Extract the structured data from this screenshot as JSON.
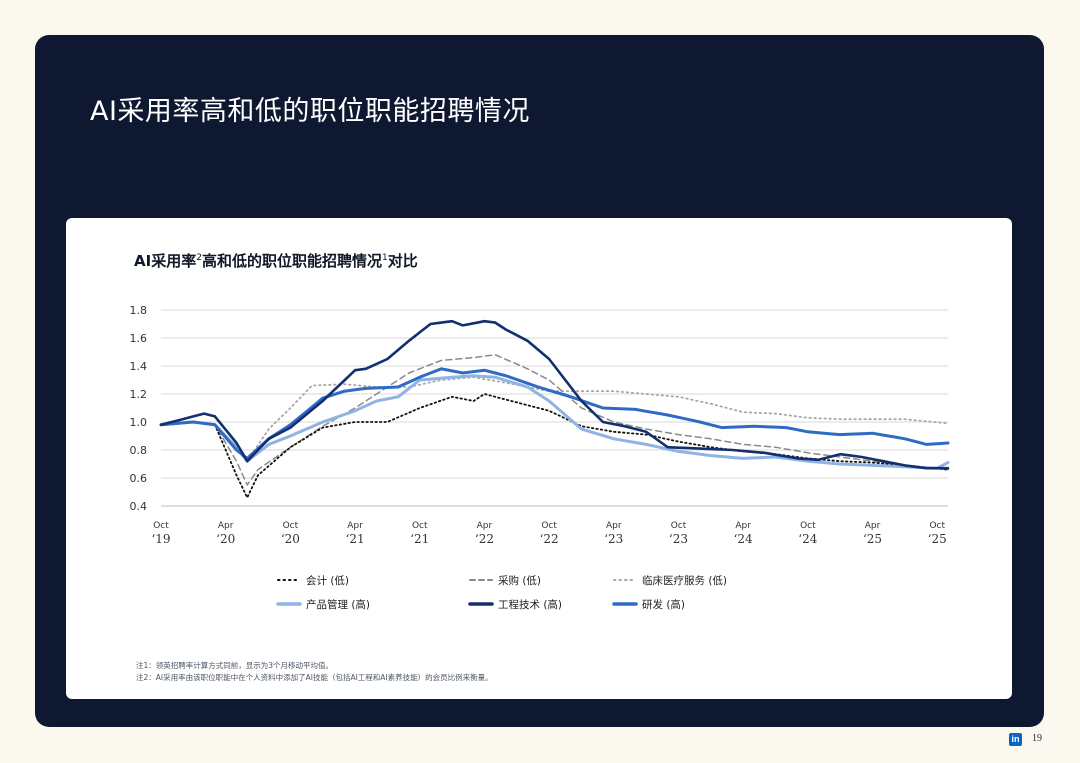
{
  "page": {
    "title": "AI采用率高和低的职位职能招聘情况",
    "page_number": "19",
    "logo_text": "in"
  },
  "chart_data": {
    "type": "line",
    "title_parts": [
      "AI采用率",
      "2",
      "高和低的职位职能招聘情况",
      "1",
      "对比"
    ],
    "xlabel": "",
    "ylabel": "",
    "ylim": [
      0.4,
      1.8
    ],
    "yticks": [
      "0.4",
      "0.6",
      "0.8",
      "1.0",
      "1.2",
      "1.4",
      "1.6",
      "1.8"
    ],
    "grid": true,
    "legend_position": "bottom",
    "x_ticks": [
      {
        "month": "Oct",
        "year": "‘19"
      },
      {
        "month": "Apr",
        "year": "‘20"
      },
      {
        "month": "Oct",
        "year": "‘20"
      },
      {
        "month": "Apr",
        "year": "‘21"
      },
      {
        "month": "Oct",
        "year": "‘21"
      },
      {
        "month": "Apr",
        "year": "‘22"
      },
      {
        "month": "Oct",
        "year": "‘22"
      },
      {
        "month": "Apr",
        "year": "‘23"
      },
      {
        "month": "Oct",
        "year": "‘23"
      },
      {
        "month": "Apr",
        "year": "‘24"
      },
      {
        "month": "Oct",
        "year": "‘24"
      },
      {
        "month": "Apr",
        "year": "‘25"
      },
      {
        "month": "Oct",
        "year": "‘25"
      }
    ],
    "x": [
      "2019-10",
      "2019-11",
      "2019-12",
      "2020-01",
      "2020-02",
      "2020-03",
      "2020-04",
      "2020-05",
      "2020-06",
      "2020-07",
      "2020-08",
      "2020-09",
      "2020-10",
      "2020-11",
      "2020-12",
      "2021-01",
      "2021-02",
      "2021-03",
      "2021-04",
      "2021-05",
      "2021-06",
      "2021-07",
      "2021-08",
      "2021-09",
      "2021-10",
      "2021-11",
      "2021-12",
      "2022-01",
      "2022-02",
      "2022-03",
      "2022-04",
      "2022-05",
      "2022-06",
      "2022-07",
      "2022-08",
      "2022-09",
      "2022-10",
      "2022-11",
      "2022-12",
      "2023-01",
      "2023-02",
      "2023-03",
      "2023-04",
      "2023-05",
      "2023-06",
      "2023-07",
      "2023-08",
      "2023-09",
      "2023-10",
      "2023-11",
      "2023-12",
      "2024-01",
      "2024-02",
      "2024-03",
      "2024-04",
      "2024-05",
      "2024-06",
      "2024-07",
      "2024-08",
      "2024-09",
      "2024-10",
      "2024-11",
      "2024-12",
      "2025-01",
      "2025-02",
      "2025-03",
      "2025-04",
      "2025-05",
      "2025-06",
      "2025-07",
      "2025-08",
      "2025-09",
      "2025-10",
      "2025-11"
    ],
    "series": [
      {
        "name": "会计 (低)",
        "style": "dotted",
        "color": "#111111",
        "width": 1.8,
        "keys": [
          [
            "2019-10",
            0.98
          ],
          [
            "2020-01",
            1.0
          ],
          [
            "2020-03",
            0.98
          ],
          [
            "2020-05",
            0.62
          ],
          [
            "2020-06",
            0.46
          ],
          [
            "2020-07",
            0.62
          ],
          [
            "2020-10",
            0.82
          ],
          [
            "2021-01",
            0.96
          ],
          [
            "2021-04",
            1.0
          ],
          [
            "2021-07",
            1.0
          ],
          [
            "2021-10",
            1.1
          ],
          [
            "2022-01",
            1.18
          ],
          [
            "2022-03",
            1.15
          ],
          [
            "2022-04",
            1.2
          ],
          [
            "2022-06",
            1.16
          ],
          [
            "2022-10",
            1.08
          ],
          [
            "2023-01",
            0.97
          ],
          [
            "2023-04",
            0.93
          ],
          [
            "2023-07",
            0.91
          ],
          [
            "2023-10",
            0.86
          ],
          [
            "2024-01",
            0.82
          ],
          [
            "2024-04",
            0.79
          ],
          [
            "2024-07",
            0.77
          ],
          [
            "2024-10",
            0.74
          ],
          [
            "2025-01",
            0.72
          ],
          [
            "2025-04",
            0.71
          ],
          [
            "2025-07",
            0.69
          ],
          [
            "2025-11",
            0.66
          ]
        ]
      },
      {
        "name": "采购 (低)",
        "style": "dashed",
        "color": "#8a8a8a",
        "width": 1.5,
        "keys": [
          [
            "2019-10",
            0.98
          ],
          [
            "2020-01",
            1.0
          ],
          [
            "2020-03",
            0.98
          ],
          [
            "2020-05",
            0.72
          ],
          [
            "2020-06",
            0.55
          ],
          [
            "2020-07",
            0.66
          ],
          [
            "2020-10",
            0.82
          ],
          [
            "2021-01",
            0.97
          ],
          [
            "2021-04",
            1.1
          ],
          [
            "2021-07",
            1.25
          ],
          [
            "2021-09",
            1.35
          ],
          [
            "2021-12",
            1.44
          ],
          [
            "2022-03",
            1.46
          ],
          [
            "2022-05",
            1.48
          ],
          [
            "2022-08",
            1.38
          ],
          [
            "2022-10",
            1.3
          ],
          [
            "2023-01",
            1.1
          ],
          [
            "2023-04",
            1.0
          ],
          [
            "2023-07",
            0.95
          ],
          [
            "2023-10",
            0.91
          ],
          [
            "2024-01",
            0.88
          ],
          [
            "2024-04",
            0.84
          ],
          [
            "2024-07",
            0.82
          ],
          [
            "2024-10",
            0.78
          ],
          [
            "2025-01",
            0.75
          ],
          [
            "2025-04",
            0.72
          ],
          [
            "2025-07",
            0.69
          ],
          [
            "2025-11",
            0.66
          ]
        ]
      },
      {
        "name": "临床医疗服务 (低)",
        "style": "dotted-light",
        "color": "#a7a7a7",
        "width": 1.8,
        "keys": [
          [
            "2019-10",
            0.98
          ],
          [
            "2020-01",
            1.0
          ],
          [
            "2020-03",
            0.98
          ],
          [
            "2020-05",
            0.8
          ],
          [
            "2020-06",
            0.72
          ],
          [
            "2020-08",
            0.95
          ],
          [
            "2020-10",
            1.1
          ],
          [
            "2020-12",
            1.26
          ],
          [
            "2021-03",
            1.27
          ],
          [
            "2021-06",
            1.25
          ],
          [
            "2021-09",
            1.25
          ],
          [
            "2021-12",
            1.3
          ],
          [
            "2022-03",
            1.32
          ],
          [
            "2022-06",
            1.28
          ],
          [
            "2022-10",
            1.22
          ],
          [
            "2023-01",
            1.22
          ],
          [
            "2023-04",
            1.22
          ],
          [
            "2023-07",
            1.2
          ],
          [
            "2023-10",
            1.18
          ],
          [
            "2024-01",
            1.13
          ],
          [
            "2024-04",
            1.07
          ],
          [
            "2024-07",
            1.06
          ],
          [
            "2024-10",
            1.03
          ],
          [
            "2025-01",
            1.02
          ],
          [
            "2025-04",
            1.02
          ],
          [
            "2025-07",
            1.02
          ],
          [
            "2025-11",
            0.99
          ]
        ]
      },
      {
        "name": "产品管理 (高)",
        "style": "solid",
        "color": "#8fb4e3",
        "width": 3,
        "keys": [
          [
            "2019-10",
            0.98
          ],
          [
            "2020-01",
            1.0
          ],
          [
            "2020-03",
            0.98
          ],
          [
            "2020-05",
            0.82
          ],
          [
            "2020-06",
            0.72
          ],
          [
            "2020-08",
            0.84
          ],
          [
            "2020-10",
            0.9
          ],
          [
            "2021-01",
            1.0
          ],
          [
            "2021-04",
            1.08
          ],
          [
            "2021-06",
            1.15
          ],
          [
            "2021-08",
            1.18
          ],
          [
            "2021-10",
            1.3
          ],
          [
            "2022-01",
            1.32
          ],
          [
            "2022-03",
            1.33
          ],
          [
            "2022-05",
            1.32
          ],
          [
            "2022-08",
            1.25
          ],
          [
            "2022-10",
            1.15
          ],
          [
            "2023-01",
            0.95
          ],
          [
            "2023-04",
            0.88
          ],
          [
            "2023-07",
            0.84
          ],
          [
            "2023-10",
            0.79
          ],
          [
            "2024-01",
            0.76
          ],
          [
            "2024-04",
            0.74
          ],
          [
            "2024-07",
            0.75
          ],
          [
            "2024-10",
            0.72
          ],
          [
            "2025-01",
            0.7
          ],
          [
            "2025-04",
            0.69
          ],
          [
            "2025-07",
            0.68
          ],
          [
            "2025-10",
            0.67
          ],
          [
            "2025-11",
            0.71
          ]
        ]
      },
      {
        "name": "工程技术 (高)",
        "style": "solid",
        "color": "#132f6e",
        "width": 2.6,
        "keys": [
          [
            "2019-10",
            0.98
          ],
          [
            "2020-01",
            1.04
          ],
          [
            "2020-02",
            1.06
          ],
          [
            "2020-03",
            1.04
          ],
          [
            "2020-05",
            0.85
          ],
          [
            "2020-06",
            0.72
          ],
          [
            "2020-08",
            0.88
          ],
          [
            "2020-10",
            0.96
          ],
          [
            "2021-01",
            1.15
          ],
          [
            "2021-04",
            1.37
          ],
          [
            "2021-05",
            1.38
          ],
          [
            "2021-07",
            1.45
          ],
          [
            "2021-09",
            1.58
          ],
          [
            "2021-11",
            1.7
          ],
          [
            "2022-01",
            1.72
          ],
          [
            "2022-02",
            1.69
          ],
          [
            "2022-04",
            1.72
          ],
          [
            "2022-05",
            1.71
          ],
          [
            "2022-06",
            1.66
          ],
          [
            "2022-08",
            1.58
          ],
          [
            "2022-10",
            1.45
          ],
          [
            "2023-01",
            1.15
          ],
          [
            "2023-03",
            1.0
          ],
          [
            "2023-05",
            0.97
          ],
          [
            "2023-07",
            0.93
          ],
          [
            "2023-09",
            0.82
          ],
          [
            "2023-12",
            0.81
          ],
          [
            "2024-03",
            0.8
          ],
          [
            "2024-06",
            0.78
          ],
          [
            "2024-09",
            0.74
          ],
          [
            "2024-11",
            0.73
          ],
          [
            "2025-01",
            0.77
          ],
          [
            "2025-03",
            0.75
          ],
          [
            "2025-05",
            0.72
          ],
          [
            "2025-07",
            0.69
          ],
          [
            "2025-09",
            0.67
          ],
          [
            "2025-11",
            0.67
          ]
        ]
      },
      {
        "name": "研发 (高)",
        "style": "solid",
        "color": "#2f6bc4",
        "width": 3,
        "keys": [
          [
            "2019-10",
            0.98
          ],
          [
            "2020-01",
            1.0
          ],
          [
            "2020-03",
            0.98
          ],
          [
            "2020-05",
            0.8
          ],
          [
            "2020-06",
            0.74
          ],
          [
            "2020-08",
            0.88
          ],
          [
            "2020-10",
            0.98
          ],
          [
            "2021-01",
            1.17
          ],
          [
            "2021-03",
            1.22
          ],
          [
            "2021-05",
            1.24
          ],
          [
            "2021-08",
            1.25
          ],
          [
            "2021-10",
            1.32
          ],
          [
            "2021-12",
            1.38
          ],
          [
            "2022-02",
            1.35
          ],
          [
            "2022-04",
            1.37
          ],
          [
            "2022-06",
            1.33
          ],
          [
            "2022-09",
            1.25
          ],
          [
            "2022-12",
            1.18
          ],
          [
            "2023-03",
            1.1
          ],
          [
            "2023-06",
            1.09
          ],
          [
            "2023-09",
            1.05
          ],
          [
            "2023-12",
            1.0
          ],
          [
            "2024-02",
            0.96
          ],
          [
            "2024-05",
            0.97
          ],
          [
            "2024-08",
            0.96
          ],
          [
            "2024-10",
            0.93
          ],
          [
            "2025-01",
            0.91
          ],
          [
            "2025-04",
            0.92
          ],
          [
            "2025-07",
            0.88
          ],
          [
            "2025-09",
            0.84
          ],
          [
            "2025-11",
            0.85
          ]
        ]
      }
    ]
  },
  "footnotes": [
    "注1：领英招聘率计算方式同前，显示为3个月移动平均值。",
    "注2：AI采用率由该职位职能中在个人资料中添加了AI技能（包括AI工程和AI素养技能）的会员比例来衡量。"
  ]
}
